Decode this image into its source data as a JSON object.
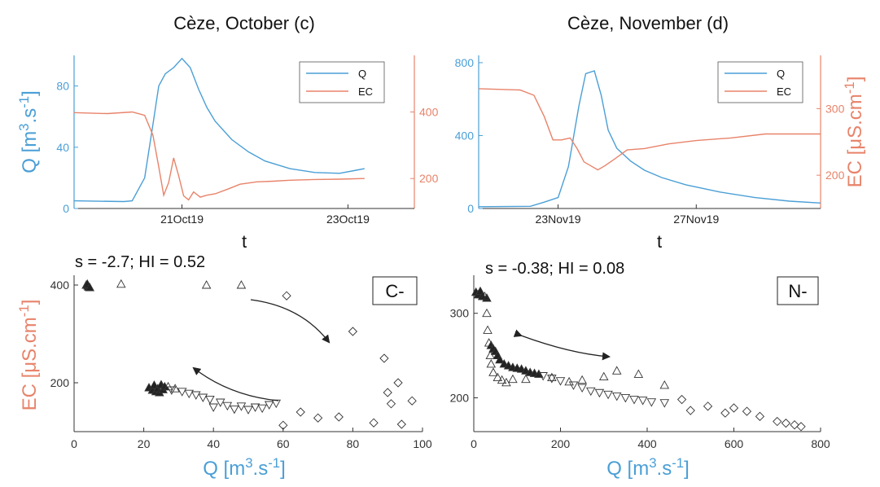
{
  "colors": {
    "q": "#4a9fd6",
    "ec": "#e8836a",
    "axis": "#333333",
    "marker": "#333333"
  },
  "chart_data": [
    {
      "id": "c",
      "type": "line",
      "title": "Cèze, October (c)",
      "xlabel": "t",
      "ylabel_left": "Q [m3.s-1]",
      "ylabel_right": "",
      "xticks": [
        "21Oct19",
        "23Oct19"
      ],
      "yticks_left": [
        "0",
        "40",
        "80"
      ],
      "yticks_right": [
        "200",
        "400"
      ],
      "ylim_left": [
        0,
        100
      ],
      "ylim_right": [
        110,
        570
      ],
      "legend": {
        "position": "top-right",
        "items": [
          "Q",
          "EC"
        ]
      },
      "series": [
        {
          "name": "Q",
          "axis": "left",
          "x": [
            19.7,
            20.3,
            20.4,
            20.55,
            20.65,
            20.72,
            20.8,
            20.9,
            21.0,
            21.1,
            21.2,
            21.3,
            21.4,
            21.6,
            21.8,
            22.0,
            22.3,
            22.6,
            22.9,
            23.1,
            23.2
          ],
          "y": [
            5,
            4.5,
            5,
            20,
            55,
            80,
            88,
            92,
            98,
            92,
            78,
            66,
            57,
            45,
            37,
            31,
            26,
            23.5,
            23,
            25,
            26
          ]
        },
        {
          "name": "EC",
          "axis": "right",
          "x": [
            19.7,
            20.1,
            20.4,
            20.55,
            20.65,
            20.72,
            20.78,
            20.84,
            20.9,
            20.96,
            21.02,
            21.08,
            21.14,
            21.22,
            21.3,
            21.4,
            21.55,
            21.7,
            21.9,
            22.1,
            22.3,
            22.6,
            22.9,
            23.2
          ],
          "y": [
            398,
            395,
            400,
            390,
            330,
            235,
            150,
            188,
            262,
            208,
            148,
            136,
            160,
            144,
            150,
            154,
            168,
            183,
            190,
            192,
            195,
            197,
            198,
            200
          ]
        }
      ]
    },
    {
      "id": "d",
      "type": "line",
      "title": "Cèze, November (d)",
      "xlabel": "t",
      "ylabel_left": "",
      "ylabel_right": "EC [μS.cm-1]",
      "xticks": [
        "23Nov19",
        "27Nov19"
      ],
      "yticks_left": [
        "0",
        "400",
        "800"
      ],
      "yticks_right": [
        "200",
        "300"
      ],
      "ylim_left": [
        0,
        840
      ],
      "ylim_right": [
        150,
        380
      ],
      "legend": {
        "position": "top-right",
        "items": [
          "Q",
          "EC"
        ]
      },
      "series": [
        {
          "name": "Q",
          "axis": "left",
          "x": [
            21.0,
            22.5,
            22.9,
            23.3,
            23.6,
            23.9,
            24.1,
            24.35,
            24.55,
            24.75,
            25.0,
            25.4,
            25.8,
            26.3,
            27.0,
            28.0,
            29.0,
            30.0,
            30.9
          ],
          "y": [
            10,
            12,
            35,
            60,
            230,
            560,
            740,
            755,
            620,
            430,
            330,
            260,
            210,
            170,
            130,
            90,
            60,
            40,
            30
          ]
        },
        {
          "name": "EC",
          "axis": "right",
          "x": [
            21.0,
            22.2,
            22.6,
            22.9,
            23.15,
            23.4,
            23.65,
            23.85,
            24.05,
            24.25,
            24.45,
            24.65,
            24.9,
            25.3,
            25.8,
            26.5,
            27.3,
            28.3,
            29.3,
            30.9
          ],
          "y": [
            330,
            328,
            320,
            288,
            253,
            253,
            256,
            240,
            220,
            214,
            208,
            214,
            223,
            238,
            240,
            247,
            252,
            256,
            262,
            262
          ]
        }
      ]
    },
    {
      "id": "C-",
      "type": "scatter",
      "title": "",
      "tag": "C-",
      "annotation": "s = -2.7; HI = 0.52",
      "xlabel": "Q [m3.s-1]",
      "ylabel": "EC [μS.cm-1]",
      "xticks": [
        "0",
        "20",
        "40",
        "60",
        "80",
        "100"
      ],
      "yticks": [
        "200",
        "400"
      ],
      "xlim": [
        0,
        100
      ],
      "ylim": [
        100,
        420
      ],
      "series": [
        {
          "name": "",
          "marker": "filled-triangle",
          "points": [
            [
              3.5,
              400
            ],
            [
              4,
              398
            ],
            [
              4.2,
              396
            ],
            [
              3.8,
              402
            ],
            [
              4.5,
              395
            ],
            [
              21.5,
              190
            ],
            [
              22.5,
              185
            ],
            [
              23,
              195
            ],
            [
              23.5,
              182
            ],
            [
              24,
              188
            ],
            [
              24.5,
              180
            ],
            [
              25,
              196
            ],
            [
              25.5,
              186
            ],
            [
              26,
              192
            ]
          ]
        },
        {
          "name": "",
          "marker": "triangle",
          "points": [
            [
              13.5,
              402
            ],
            [
              38,
              400
            ],
            [
              48,
              400
            ],
            [
              27,
              192
            ],
            [
              29,
              188
            ]
          ]
        },
        {
          "name": "",
          "marker": "inverted-triangle",
          "points": [
            [
              28,
              185
            ],
            [
              31,
              182
            ],
            [
              33,
              178
            ],
            [
              35,
              175
            ],
            [
              37,
              170
            ],
            [
              39,
              166
            ],
            [
              40,
              150
            ],
            [
              42,
              160
            ],
            [
              44,
              153
            ],
            [
              46,
              146
            ],
            [
              48,
              152
            ],
            [
              50,
              145
            ],
            [
              52,
              150
            ],
            [
              54,
              148
            ],
            [
              56,
              155
            ],
            [
              58,
              158
            ]
          ]
        },
        {
          "name": "",
          "marker": "diamond",
          "points": [
            [
              61,
              378
            ],
            [
              60,
              113
            ],
            [
              65,
              140
            ],
            [
              70,
              128
            ],
            [
              76,
              130
            ],
            [
              80,
              305
            ],
            [
              86,
              118
            ],
            [
              89,
              250
            ],
            [
              90,
              180
            ],
            [
              91,
              157
            ],
            [
              93,
              200
            ],
            [
              94,
              115
            ],
            [
              97,
              163
            ]
          ]
        }
      ]
    },
    {
      "id": "N-",
      "type": "scatter",
      "title": "",
      "tag": "N-",
      "annotation": "s = -0.38; HI = 0.08",
      "xlabel": "Q [m3.s-1]",
      "ylabel": "",
      "xticks": [
        "0",
        "200",
        "400",
        "600",
        "800"
      ],
      "yticks": [
        "200",
        "300"
      ],
      "xlim": [
        0,
        800
      ],
      "ylim": [
        160,
        345
      ],
      "series": [
        {
          "name": "",
          "marker": "filled-triangle",
          "points": [
            [
              5,
              325
            ],
            [
              10,
              322
            ],
            [
              15,
              326
            ],
            [
              20,
              320
            ],
            [
              30,
              318
            ],
            [
              40,
              262
            ],
            [
              45,
              258
            ],
            [
              50,
              255
            ],
            [
              55,
              250
            ],
            [
              60,
              245
            ],
            [
              70,
              240
            ],
            [
              80,
              238
            ],
            [
              90,
              236
            ],
            [
              100,
              235
            ],
            [
              110,
              234
            ],
            [
              120,
              232
            ],
            [
              130,
              230
            ],
            [
              140,
              229
            ],
            [
              150,
              228
            ]
          ]
        },
        {
          "name": "",
          "marker": "triangle",
          "points": [
            [
              25,
              320
            ],
            [
              30,
              300
            ],
            [
              32,
              280
            ],
            [
              35,
              265
            ],
            [
              38,
              250
            ],
            [
              40,
              240
            ],
            [
              45,
              230
            ],
            [
              55,
              224
            ],
            [
              65,
              221
            ],
            [
              75,
              218
            ],
            [
              90,
              222
            ],
            [
              120,
              222
            ],
            [
              180,
              224
            ],
            [
              220,
              219
            ],
            [
              250,
              221
            ],
            [
              300,
              225
            ],
            [
              330,
              232
            ],
            [
              380,
              228
            ],
            [
              440,
              215
            ]
          ]
        },
        {
          "name": "",
          "marker": "inverted-triangle",
          "points": [
            [
              160,
              226
            ],
            [
              180,
              223
            ],
            [
              200,
              220
            ],
            [
              230,
              215
            ],
            [
              250,
              212
            ],
            [
              270,
              208
            ],
            [
              290,
              206
            ],
            [
              310,
              204
            ],
            [
              330,
              202
            ],
            [
              350,
              200
            ],
            [
              370,
              198
            ],
            [
              390,
              197
            ],
            [
              410,
              195
            ],
            [
              440,
              194
            ]
          ]
        },
        {
          "name": "",
          "marker": "diamond",
          "points": [
            [
              480,
              198
            ],
            [
              500,
              185
            ],
            [
              540,
              190
            ],
            [
              580,
              182
            ],
            [
              600,
              188
            ],
            [
              630,
              184
            ],
            [
              660,
              178
            ],
            [
              700,
              172
            ],
            [
              720,
              170
            ],
            [
              740,
              168
            ],
            [
              755,
              166
            ]
          ]
        }
      ]
    }
  ]
}
